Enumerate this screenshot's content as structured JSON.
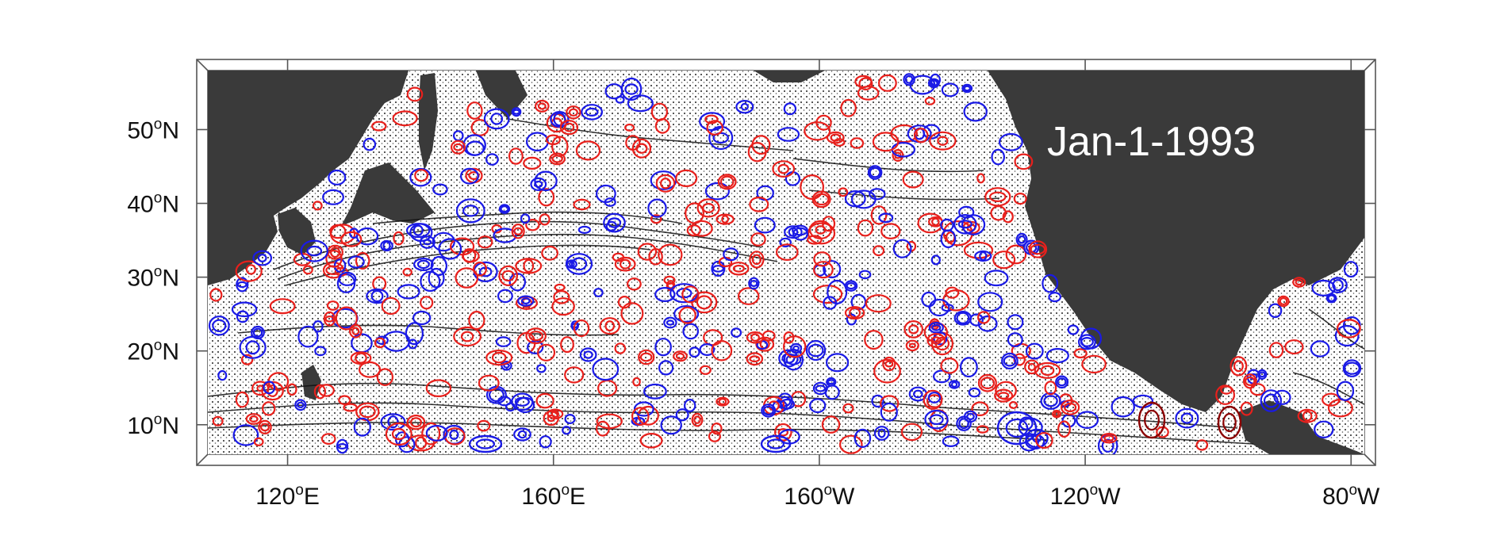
{
  "figure": {
    "date_label": "Jan-1-1993",
    "lon_range": [
      108,
      282
    ],
    "lat_range": [
      6,
      58
    ],
    "lat_ticks": [
      {
        "value": 50,
        "num": "50",
        "deg": "o",
        "hemi": "N"
      },
      {
        "value": 40,
        "num": "40",
        "deg": "o",
        "hemi": "N"
      },
      {
        "value": 30,
        "num": "30",
        "deg": "o",
        "hemi": "N"
      },
      {
        "value": 20,
        "num": "20",
        "deg": "o",
        "hemi": "N"
      },
      {
        "value": 10,
        "num": "10",
        "deg": "o",
        "hemi": "N"
      }
    ],
    "lon_ticks": [
      {
        "value": 120,
        "num": "120",
        "deg": "o",
        "hemi": "E"
      },
      {
        "value": 160,
        "num": "160",
        "deg": "o",
        "hemi": "E"
      },
      {
        "value": 200,
        "num": "160",
        "deg": "o",
        "hemi": "W"
      },
      {
        "value": 240,
        "num": "120",
        "deg": "o",
        "hemi": "W"
      },
      {
        "value": 280,
        "num": "80",
        "deg": "o",
        "hemi": "W"
      }
    ],
    "colors": {
      "land": "#3a3a3a",
      "ocean": "#ffffff",
      "frame": "#555555",
      "anticyclonic_eddy": "#e8201c",
      "cyclonic_eddy": "#1a1ae6",
      "strong_eddy": "#8b0000",
      "current_lines": "#111111"
    },
    "icons": [
      "eddy-contour-marker"
    ]
  }
}
